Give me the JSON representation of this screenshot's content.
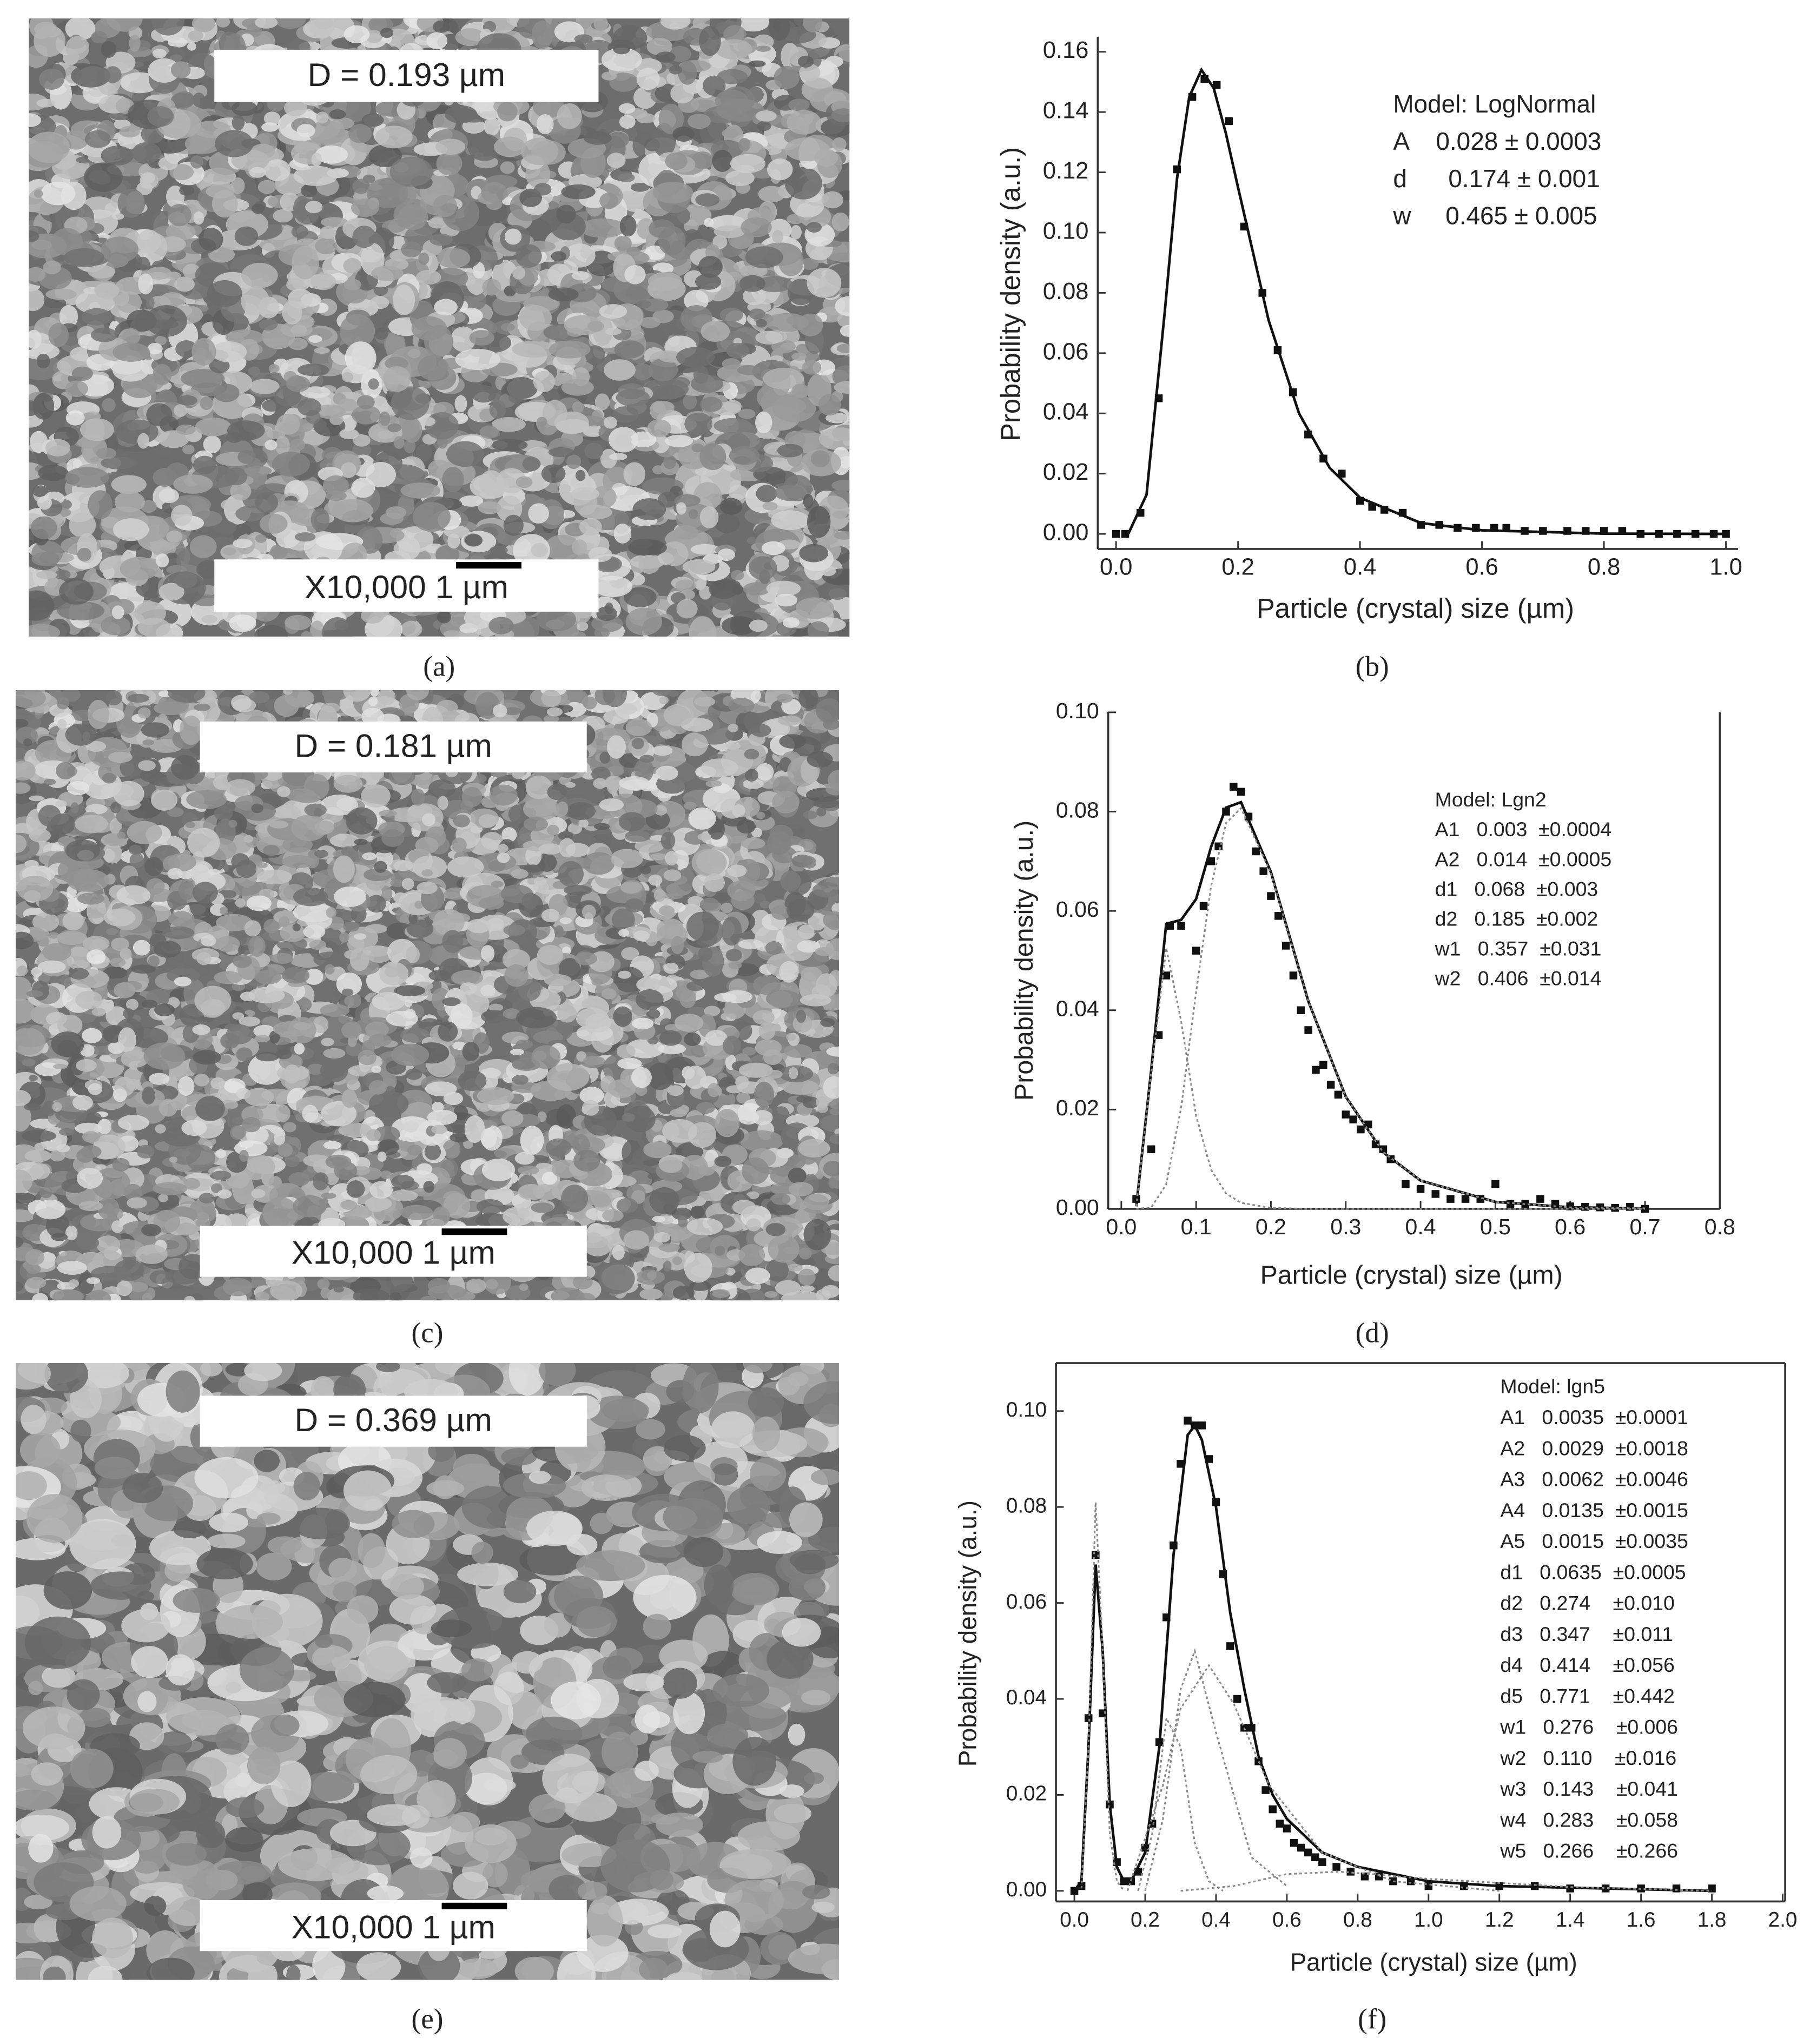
{
  "sem_panels": [
    {
      "panel_label": "(a)",
      "size_label": "D = 0.193 µm",
      "magnification": "X10,000 1 µm"
    },
    {
      "panel_label": "(c)",
      "size_label": "D = 0.181 µm",
      "magnification": "X10,000 1 µm"
    },
    {
      "panel_label": "(e)",
      "size_label": "D = 0.369 µm",
      "magnification": "X10,000 1 µm"
    }
  ],
  "chart_data": [
    {
      "type": "scatter",
      "panel_label": "(b)",
      "x_label": "Particle (crystal) size (µm)",
      "y_label": "Probability density (a.u.)",
      "annotation_lines": [
        "Model: LogNormal",
        "A    0.028 ± 0.0003",
        "d      0.174 ± 0.001",
        "w     0.465 ± 0.005"
      ],
      "xlim": [
        -0.03,
        1.02
      ],
      "ylim": [
        -0.005,
        0.165
      ],
      "xticks": [
        {
          "value": 0,
          "label": "0.0"
        },
        {
          "value": 0.2,
          "label": "0.2"
        },
        {
          "value": 0.4,
          "label": "0.4"
        },
        {
          "value": 0.6,
          "label": "0.6"
        },
        {
          "value": 0.8,
          "label": "0.8"
        },
        {
          "value": 1,
          "label": "1.0"
        }
      ],
      "yticks": [
        {
          "value": 0,
          "label": "0.00"
        },
        {
          "value": 0.02,
          "label": "0.02"
        },
        {
          "value": 0.04,
          "label": "0.04"
        },
        {
          "value": 0.06,
          "label": "0.06"
        },
        {
          "value": 0.08,
          "label": "0.08"
        },
        {
          "value": 0.1,
          "label": "0.10"
        },
        {
          "value": 0.12,
          "label": "0.12"
        },
        {
          "value": 0.14,
          "label": "0.14"
        },
        {
          "value": 0.16,
          "label": "0.16"
        }
      ],
      "series": [
        {
          "style": "markers",
          "color": "#111111",
          "x": [
            0,
            0.015,
            0.04,
            0.07,
            0.1,
            0.125,
            0.145,
            0.165,
            0.185,
            0.21,
            0.24,
            0.265,
            0.29,
            0.315,
            0.34,
            0.37,
            0.4,
            0.42,
            0.44,
            0.47,
            0.5,
            0.53,
            0.56,
            0.59,
            0.62,
            0.64,
            0.67,
            0.7,
            0.74,
            0.77,
            0.8,
            0.83,
            0.86,
            0.89,
            0.92,
            0.95,
            0.98,
            1.0
          ],
          "values": [
            0,
            0,
            0.007,
            0.045,
            0.121,
            0.145,
            0.151,
            0.149,
            0.137,
            0.102,
            0.08,
            0.061,
            0.047,
            0.033,
            0.025,
            0.02,
            0.011,
            0.009,
            0.008,
            0.007,
            0.003,
            0.003,
            0.002,
            0.002,
            0.002,
            0.002,
            0.001,
            0.001,
            0.001,
            0.001,
            0.001,
            0.001,
            0,
            0,
            0,
            0,
            0,
            0
          ]
        },
        {
          "style": "solid",
          "color": "#111111",
          "x": [
            0.02,
            0.05,
            0.08,
            0.1,
            0.12,
            0.14,
            0.16,
            0.18,
            0.2,
            0.25,
            0.3,
            0.35,
            0.4,
            0.5,
            0.6,
            0.8,
            1.0
          ],
          "values": [
            0,
            0.013,
            0.074,
            0.118,
            0.145,
            0.154,
            0.148,
            0.133,
            0.115,
            0.071,
            0.04,
            0.022,
            0.012,
            0.0036,
            0.0012,
            0.0001,
            0
          ]
        }
      ]
    },
    {
      "type": "scatter",
      "panel_label": "(d)",
      "x_label": "Particle (crystal) size (µm)",
      "y_label": "Probability density (a.u.)",
      "annotation_lines": [
        "Model: Lgn2",
        "A1   0.003  ±0.0004",
        "A2   0.014  ±0.0005",
        "d1   0.068  ±0.003",
        "d2   0.185  ±0.002",
        "w1   0.357  ±0.031",
        "w2   0.406  ±0.014"
      ],
      "xlim": [
        -0.0175,
        0.8
      ],
      "ylim": [
        0,
        0.1
      ],
      "xticks": [
        {
          "value": 0,
          "label": "0.0"
        },
        {
          "value": 0.1,
          "label": "0.1"
        },
        {
          "value": 0.2,
          "label": "0.2"
        },
        {
          "value": 0.3,
          "label": "0.3"
        },
        {
          "value": 0.4,
          "label": "0.4"
        },
        {
          "value": 0.5,
          "label": "0.5"
        },
        {
          "value": 0.6,
          "label": "0.6"
        },
        {
          "value": 0.7,
          "label": "0.7"
        },
        {
          "value": 0.8,
          "label": "0.8"
        }
      ],
      "yticks": [
        {
          "value": 0,
          "label": "0.00"
        },
        {
          "value": 0.02,
          "label": "0.02"
        },
        {
          "value": 0.04,
          "label": "0.04"
        },
        {
          "value": 0.06,
          "label": "0.06"
        },
        {
          "value": 0.08,
          "label": "0.08"
        },
        {
          "value": 0.1,
          "label": "0.10"
        }
      ],
      "series": [
        {
          "style": "markers",
          "color": "#111111",
          "x": [
            0.02,
            0.04,
            0.05,
            0.06,
            0.065,
            0.08,
            0.1,
            0.11,
            0.12,
            0.13,
            0.14,
            0.15,
            0.16,
            0.17,
            0.18,
            0.19,
            0.2,
            0.21,
            0.22,
            0.23,
            0.24,
            0.25,
            0.26,
            0.27,
            0.28,
            0.29,
            0.3,
            0.31,
            0.32,
            0.33,
            0.34,
            0.35,
            0.36,
            0.38,
            0.4,
            0.42,
            0.44,
            0.46,
            0.48,
            0.5,
            0.52,
            0.54,
            0.56,
            0.58,
            0.6,
            0.62,
            0.64,
            0.66,
            0.68,
            0.7
          ],
          "values": [
            0.002,
            0.012,
            0.035,
            0.047,
            0.057,
            0.057,
            0.052,
            0.061,
            0.07,
            0.073,
            0.08,
            0.085,
            0.084,
            0.079,
            0.072,
            0.068,
            0.063,
            0.059,
            0.053,
            0.047,
            0.04,
            0.036,
            0.028,
            0.029,
            0.025,
            0.023,
            0.019,
            0.018,
            0.016,
            0.017,
            0.013,
            0.012,
            0.01,
            0.005,
            0.004,
            0.003,
            0.002,
            0.002,
            0.002,
            0.005,
            0.001,
            0.001,
            0.002,
            0.001,
            0.0005,
            0.0004,
            0.0003,
            0.0002,
            0.0004,
            0
          ]
        },
        {
          "style": "solid",
          "color": "#111111",
          "x": [
            0.02,
            0.04,
            0.06,
            0.08,
            0.1,
            0.12,
            0.14,
            0.16,
            0.2,
            0.25,
            0.3,
            0.35,
            0.4,
            0.5,
            0.6,
            0.7
          ],
          "values": [
            0.0005,
            0.028,
            0.0574,
            0.0582,
            0.0624,
            0.0729,
            0.0808,
            0.0819,
            0.0678,
            0.0418,
            0.0226,
            0.0114,
            0.0057,
            0.0014,
            0.0003,
            0.0001
          ]
        },
        {
          "style": "dotted",
          "color": "#888888",
          "x": [
            0.02,
            0.04,
            0.06,
            0.08,
            0.1,
            0.12,
            0.14,
            0.16,
            0.2,
            0.25,
            0.3,
            0.35,
            0.4,
            0.5,
            0.6,
            0.7
          ],
          "values": [
            0.0005,
            0.0277,
            0.0525,
            0.0378,
            0.0187,
            0.0079,
            0.0031,
            0.0012,
            0.0002,
            0,
            0,
            0,
            0,
            0,
            0,
            0
          ]
        },
        {
          "style": "dotted",
          "color": "#888888",
          "x": [
            0.02,
            0.04,
            0.06,
            0.08,
            0.1,
            0.12,
            0.14,
            0.16,
            0.2,
            0.25,
            0.3,
            0.35,
            0.4,
            0.5,
            0.6,
            0.7
          ],
          "values": [
            0,
            0.0003,
            0.0049,
            0.0204,
            0.0437,
            0.065,
            0.0777,
            0.0807,
            0.0676,
            0.0418,
            0.0226,
            0.0114,
            0.0057,
            0.0014,
            0.0003,
            0.0001
          ]
        }
      ]
    },
    {
      "type": "scatter",
      "panel_label": "(f)",
      "x_label": "Particle (crystal) size (µm)",
      "y_label": "Probability density (a.u.)",
      "annotation_lines": [
        "Model: lgn5",
        "A1   0.0035  ±0.0001",
        "A2   0.0029  ±0.0018",
        "A3   0.0062  ±0.0046",
        "A4   0.0135  ±0.0015",
        "A5   0.0015  ±0.0035",
        "d1   0.0635  ±0.0005",
        "d2   0.274    ±0.010",
        "d3   0.347    ±0.011",
        "d4   0.414    ±0.056",
        "d5   0.771    ±0.442",
        "w1   0.276    ±0.006",
        "w2   0.110    ±0.016",
        "w3   0.143    ±0.041",
        "w4   0.283    ±0.058",
        "w5   0.266    ±0.266"
      ],
      "xlim": [
        -0.052,
        2.007
      ],
      "ylim": [
        -0.0022,
        0.11
      ],
      "xticks": [
        {
          "value": 0,
          "label": "0.0"
        },
        {
          "value": 0.2,
          "label": "0.2"
        },
        {
          "value": 0.4,
          "label": "0.4"
        },
        {
          "value": 0.6,
          "label": "0.6"
        },
        {
          "value": 0.8,
          "label": "0.8"
        },
        {
          "value": 1,
          "label": "1.0"
        },
        {
          "value": 1.2,
          "label": "1.2"
        },
        {
          "value": 1.4,
          "label": "1.4"
        },
        {
          "value": 1.6,
          "label": "1.6"
        },
        {
          "value": 1.8,
          "label": "1.8"
        },
        {
          "value": 2,
          "label": "2.0"
        }
      ],
      "yticks": [
        {
          "value": 0,
          "label": "0.00"
        },
        {
          "value": 0.02,
          "label": "0.02"
        },
        {
          "value": 0.04,
          "label": "0.04"
        },
        {
          "value": 0.06,
          "label": "0.06"
        },
        {
          "value": 0.08,
          "label": "0.08"
        },
        {
          "value": 0.1,
          "label": "0.10"
        }
      ],
      "series": [
        {
          "style": "markers",
          "color": "#111111",
          "x": [
            0,
            0.02,
            0.04,
            0.06,
            0.08,
            0.1,
            0.12,
            0.14,
            0.16,
            0.18,
            0.2,
            0.22,
            0.24,
            0.26,
            0.28,
            0.3,
            0.32,
            0.34,
            0.36,
            0.38,
            0.4,
            0.42,
            0.44,
            0.46,
            0.48,
            0.5,
            0.52,
            0.54,
            0.56,
            0.58,
            0.6,
            0.62,
            0.64,
            0.66,
            0.68,
            0.7,
            0.74,
            0.78,
            0.82,
            0.86,
            0.9,
            0.95,
            1.0,
            1.1,
            1.2,
            1.3,
            1.4,
            1.5,
            1.6,
            1.7,
            1.8
          ],
          "values": [
            0,
            0.001,
            0.036,
            0.07,
            0.037,
            0.018,
            0.006,
            0.002,
            0.002,
            0.004,
            0.009,
            0.014,
            0.031,
            0.057,
            0.072,
            0.089,
            0.098,
            0.097,
            0.097,
            0.09,
            0.081,
            0.066,
            0.051,
            0.04,
            0.034,
            0.034,
            0.027,
            0.021,
            0.017,
            0.014,
            0.013,
            0.01,
            0.009,
            0.008,
            0.007,
            0.006,
            0.005,
            0.004,
            0.003,
            0.003,
            0.002,
            0.002,
            0.001,
            0.001,
            0.001,
            0.001,
            0.0005,
            0.0005,
            0.0005,
            0.0005,
            0.0005
          ]
        },
        {
          "style": "solid",
          "color": "#111111",
          "x": [
            0,
            0.02,
            0.04,
            0.06,
            0.08,
            0.1,
            0.12,
            0.14,
            0.16,
            0.2,
            0.24,
            0.28,
            0.32,
            0.34,
            0.36,
            0.4,
            0.44,
            0.48,
            0.52,
            0.56,
            0.6,
            0.7,
            0.8,
            1.0,
            1.2,
            1.5,
            1.8
          ],
          "values": [
            0,
            0.002,
            0.03,
            0.068,
            0.05,
            0.018,
            0.005,
            0.002,
            0.002,
            0.008,
            0.03,
            0.07,
            0.095,
            0.097,
            0.094,
            0.08,
            0.058,
            0.042,
            0.028,
            0.02,
            0.015,
            0.008,
            0.005,
            0.002,
            0.001,
            0.0005,
            0
          ]
        },
        {
          "style": "dotted",
          "color": "#888888",
          "x": [
            0.02,
            0.04,
            0.06,
            0.08,
            0.1,
            0.12,
            0.14
          ],
          "values": [
            0.0005,
            0.03,
            0.081,
            0.05,
            0.012,
            0.002,
            0
          ]
        },
        {
          "style": "dotted",
          "color": "#888888",
          "x": [
            0.18,
            0.22,
            0.26,
            0.3,
            0.34,
            0.38,
            0.42
          ],
          "values": [
            0,
            0.012,
            0.036,
            0.03,
            0.01,
            0.002,
            0
          ]
        },
        {
          "style": "dotted",
          "color": "#888888",
          "x": [
            0.2,
            0.25,
            0.3,
            0.34,
            0.4,
            0.5,
            0.6
          ],
          "values": [
            0,
            0.015,
            0.042,
            0.05,
            0.033,
            0.007,
            0.001
          ]
        },
        {
          "style": "dotted",
          "color": "#888888",
          "x": [
            0.15,
            0.25,
            0.3,
            0.38,
            0.45,
            0.55,
            0.7,
            0.9,
            1.2
          ],
          "values": [
            0,
            0.022,
            0.038,
            0.047,
            0.039,
            0.022,
            0.008,
            0.002,
            0
          ]
        },
        {
          "style": "dotted",
          "color": "#888888",
          "x": [
            0.3,
            0.45,
            0.6,
            0.75,
            1.0,
            1.4,
            1.8
          ],
          "values": [
            0,
            0.001,
            0.0035,
            0.004,
            0.0025,
            0.0008,
            0
          ]
        }
      ]
    }
  ]
}
